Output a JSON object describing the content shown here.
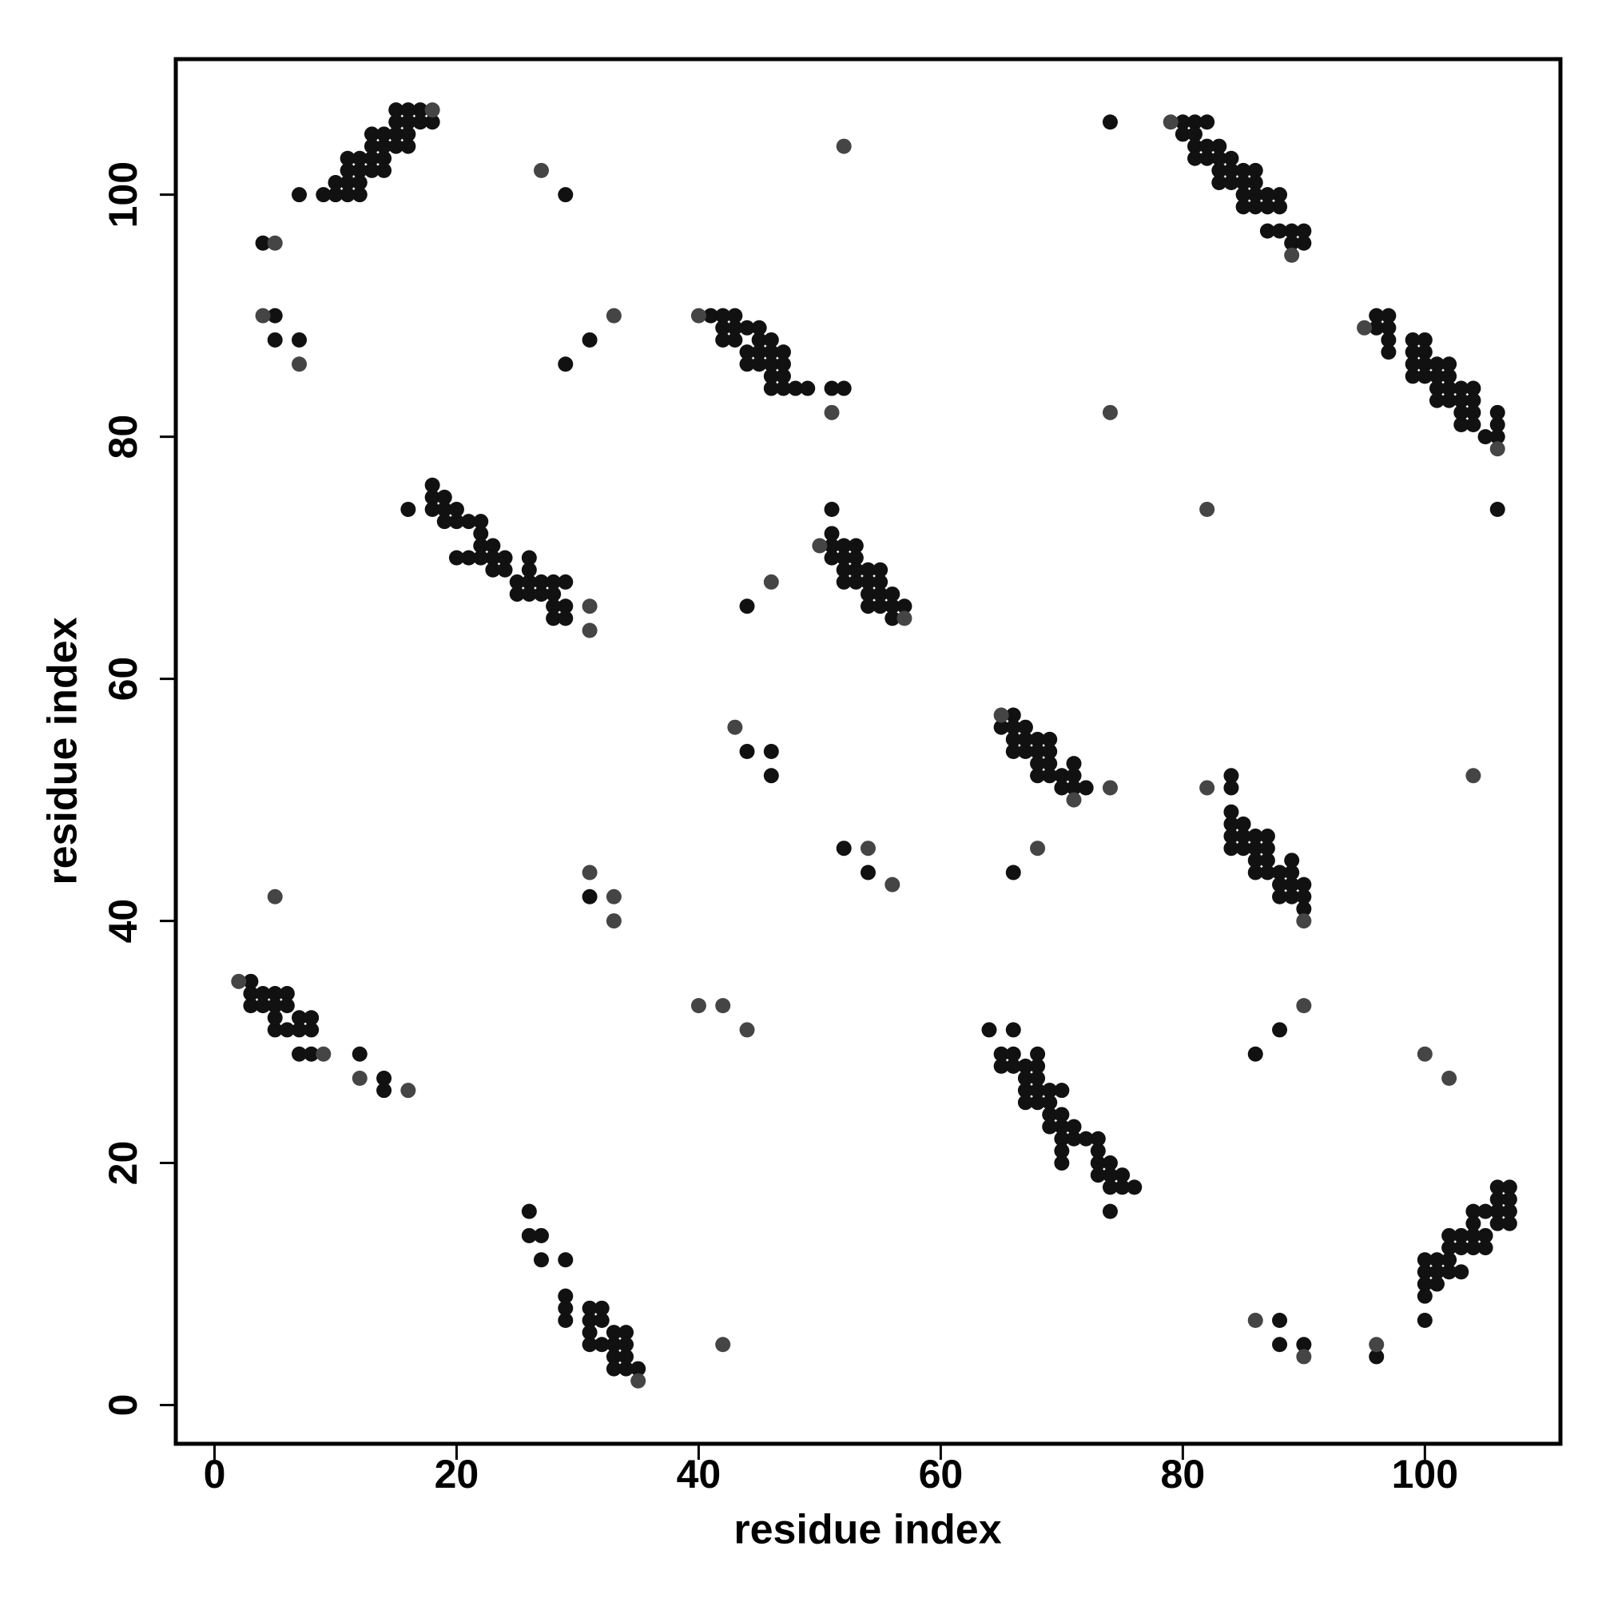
{
  "chart_data": {
    "type": "scatter",
    "xlabel": "residue index",
    "ylabel": "residue index",
    "xlim": [
      -3.2,
      111.2
    ],
    "ylim": [
      -3.2,
      111.2
    ],
    "xticks": [
      0,
      20,
      40,
      60,
      80,
      100
    ],
    "yticks": [
      0,
      20,
      40,
      60,
      80,
      100
    ],
    "series": [
      {
        "color": "#111111",
        "x": [
          15,
          16,
          17,
          15,
          16,
          17,
          18,
          13,
          14,
          15,
          16,
          13,
          14,
          15,
          16,
          11,
          12,
          13,
          14,
          11,
          12,
          13,
          14,
          10,
          11,
          12,
          7,
          9,
          10,
          11,
          12,
          4,
          5,
          5,
          7,
          29,
          31,
          29,
          41,
          42,
          43,
          42,
          43,
          44,
          45,
          42,
          43,
          45,
          46,
          44,
          45,
          46,
          47,
          44,
          45,
          46,
          47,
          46,
          47,
          46,
          47,
          48,
          49,
          51,
          52,
          16,
          18,
          18,
          19,
          18,
          19,
          20,
          19,
          20,
          21,
          22,
          22,
          22,
          23,
          20,
          21,
          22,
          23,
          24,
          26,
          23,
          24,
          26,
          25,
          26,
          27,
          28,
          29,
          25,
          26,
          27,
          28,
          28,
          29,
          28,
          29,
          51,
          51,
          51,
          52,
          53,
          51,
          52,
          53,
          52,
          53,
          54,
          55,
          52,
          53,
          54,
          55,
          54,
          55,
          56,
          54,
          55,
          56,
          57,
          56,
          44,
          74,
          80,
          81,
          82,
          80,
          81,
          81,
          82,
          83,
          81,
          82,
          83,
          84,
          83,
          84,
          85,
          86,
          83,
          84,
          85,
          86,
          85,
          86,
          87,
          88,
          85,
          86,
          87,
          88,
          87,
          88,
          89,
          90,
          89,
          90,
          96,
          97,
          96,
          97,
          97,
          97,
          99,
          100,
          99,
          100,
          99,
          100,
          101,
          102,
          99,
          100,
          101,
          102,
          101,
          102,
          103,
          104,
          101,
          102,
          103,
          104,
          103,
          104,
          106,
          103,
          104,
          106,
          105,
          106,
          106,
          66,
          65,
          66,
          67,
          66,
          67,
          68,
          69,
          66,
          67,
          68,
          69,
          68,
          69,
          71,
          68,
          69,
          70,
          71,
          70,
          71,
          72,
          44,
          46,
          46,
          66,
          52,
          54,
          84,
          84,
          84,
          84,
          85,
          84,
          85,
          86,
          87,
          84,
          85,
          86,
          87,
          86,
          87,
          89,
          86,
          87,
          88,
          89,
          88,
          89,
          90,
          88,
          89,
          90,
          90,
          31,
          3,
          3,
          4,
          5,
          6,
          3,
          4,
          5,
          6,
          5,
          7,
          8,
          5,
          6,
          7,
          8,
          7,
          8,
          12,
          14,
          14,
          64,
          66,
          65,
          66,
          68,
          65,
          66,
          67,
          68,
          67,
          68,
          67,
          68,
          69,
          70,
          67,
          68,
          69,
          69,
          70,
          69,
          70,
          71,
          70,
          71,
          72,
          73,
          70,
          73,
          73,
          74,
          70,
          73,
          74,
          75,
          74,
          75,
          76,
          74,
          88,
          86,
          106,
          107,
          106,
          107,
          104,
          105,
          106,
          107,
          104,
          106,
          107,
          102,
          103,
          104,
          105,
          102,
          103,
          104,
          105,
          100,
          101,
          102,
          100,
          101,
          102,
          103,
          100,
          101,
          100,
          100,
          88,
          88,
          90,
          96,
          26,
          26,
          27,
          27,
          29,
          29,
          29,
          29,
          31,
          32,
          31,
          32,
          31,
          33,
          34,
          31,
          32,
          33,
          34,
          33,
          34,
          33,
          34,
          35
        ],
        "y": [
          107,
          107,
          107,
          106,
          106,
          106,
          106,
          105,
          105,
          105,
          105,
          104,
          104,
          104,
          104,
          103,
          103,
          103,
          103,
          102,
          102,
          102,
          102,
          101,
          101,
          101,
          100,
          100,
          100,
          100,
          100,
          96,
          90,
          88,
          88,
          100,
          88,
          86,
          90,
          90,
          90,
          89,
          89,
          89,
          89,
          88,
          88,
          88,
          88,
          87,
          87,
          87,
          87,
          86,
          86,
          86,
          86,
          85,
          85,
          84,
          84,
          84,
          84,
          84,
          84,
          74,
          76,
          75,
          75,
          74,
          74,
          74,
          73,
          73,
          73,
          73,
          72,
          71,
          71,
          70,
          70,
          70,
          70,
          70,
          70,
          69,
          69,
          69,
          68,
          68,
          68,
          68,
          68,
          67,
          67,
          67,
          67,
          66,
          66,
          65,
          65,
          74,
          72,
          71,
          71,
          71,
          70,
          70,
          70,
          69,
          69,
          69,
          69,
          68,
          68,
          68,
          68,
          67,
          67,
          67,
          66,
          66,
          66,
          66,
          65,
          66,
          106,
          106,
          106,
          106,
          105,
          105,
          104,
          104,
          104,
          103,
          103,
          103,
          103,
          102,
          102,
          102,
          102,
          101,
          101,
          101,
          101,
          100,
          100,
          100,
          100,
          99,
          99,
          99,
          99,
          97,
          97,
          97,
          97,
          96,
          96,
          90,
          90,
          89,
          89,
          88,
          87,
          88,
          88,
          87,
          87,
          86,
          86,
          86,
          86,
          85,
          85,
          85,
          85,
          84,
          84,
          84,
          84,
          83,
          83,
          83,
          83,
          82,
          82,
          82,
          81,
          81,
          81,
          80,
          80,
          74,
          57,
          56,
          56,
          56,
          55,
          55,
          55,
          55,
          54,
          54,
          54,
          54,
          53,
          53,
          53,
          52,
          52,
          52,
          52,
          51,
          51,
          51,
          54,
          54,
          52,
          44,
          46,
          44,
          52,
          51,
          49,
          48,
          48,
          47,
          47,
          47,
          47,
          46,
          46,
          46,
          46,
          45,
          45,
          45,
          44,
          44,
          44,
          44,
          43,
          43,
          43,
          42,
          42,
          42,
          41,
          42,
          35,
          34,
          34,
          34,
          34,
          33,
          33,
          33,
          33,
          32,
          32,
          32,
          31,
          31,
          31,
          31,
          29,
          29,
          29,
          27,
          26,
          31,
          31,
          29,
          29,
          29,
          28,
          28,
          28,
          28,
          27,
          27,
          26,
          26,
          26,
          26,
          25,
          25,
          25,
          24,
          24,
          23,
          23,
          23,
          22,
          22,
          22,
          22,
          21,
          21,
          20,
          20,
          20,
          19,
          19,
          19,
          18,
          18,
          18,
          16,
          31,
          29,
          18,
          18,
          17,
          17,
          16,
          16,
          16,
          16,
          15,
          15,
          15,
          14,
          14,
          14,
          14,
          13,
          13,
          13,
          13,
          12,
          12,
          12,
          11,
          11,
          11,
          11,
          10,
          10,
          9,
          7,
          7,
          5,
          5,
          4,
          16,
          14,
          14,
          12,
          12,
          9,
          8,
          7,
          8,
          8,
          7,
          7,
          6,
          6,
          6,
          5,
          5,
          5,
          5,
          4,
          4,
          3,
          3,
          3
        ]
      },
      {
        "color": "#454545",
        "x": [
          27,
          52,
          33,
          7,
          4,
          5,
          51,
          74,
          82,
          46,
          31,
          31,
          43,
          74,
          71,
          68,
          56,
          54,
          5,
          33,
          33,
          31,
          40,
          42,
          44,
          12,
          16,
          90,
          102,
          100,
          86,
          90,
          96,
          42,
          104,
          82,
          35,
          89,
          106,
          57,
          90,
          9,
          2,
          50,
          95,
          79,
          18,
          40,
          65
        ],
        "y": [
          102,
          104,
          90,
          86,
          90,
          96,
          82,
          82,
          74,
          68,
          66,
          64,
          56,
          51,
          50,
          46,
          43,
          46,
          42,
          40,
          42,
          44,
          33,
          33,
          31,
          27,
          26,
          33,
          27,
          29,
          7,
          4,
          5,
          5,
          52,
          51,
          2,
          95,
          79,
          65,
          40,
          29,
          35,
          71,
          89,
          106,
          107,
          90,
          57
        ]
      }
    ]
  }
}
